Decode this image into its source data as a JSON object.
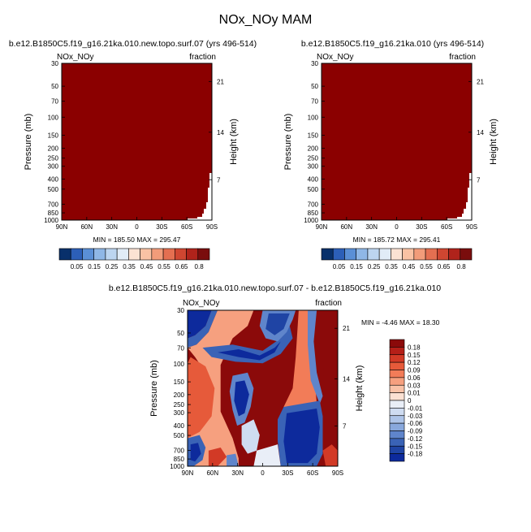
{
  "title": "NOx_NOy MAM",
  "colors": {
    "full_field": "#8b0000",
    "diff_red_deep": "#8b0a0a",
    "diff_blue_deep": "#0d2a9c"
  },
  "chart_data": [
    {
      "type": "heatmap",
      "title": "b.e12.B1850C5.f19_g16.21ka.010.new.topo.surf.07 (yrs 496-514)",
      "left_label": "NOx_NOy",
      "right_label": "fraction",
      "xlabel": "",
      "ylabel": "Pressure (mb)",
      "y2label": "Height (km)",
      "x_ticks": [
        "90N",
        "60N",
        "30N",
        "0",
        "30S",
        "60S",
        "90S"
      ],
      "y_ticks": [
        "30",
        "50",
        "70",
        "100",
        "150",
        "200",
        "250",
        "300",
        "400",
        "500",
        "700",
        "850",
        "1000"
      ],
      "y2_ticks": [
        "21",
        "14",
        "7"
      ],
      "ylim": [
        1000,
        30
      ],
      "min_max_text": "MIN = 185.50   MAX = 295.47"
    },
    {
      "type": "heatmap",
      "title": "b.e12.B1850C5.f19_g16.21ka.010 (yrs 496-514)",
      "left_label": "NOx_NOy",
      "right_label": "fraction",
      "xlabel": "",
      "ylabel": "Pressure (mb)",
      "y2label": "Height (km)",
      "x_ticks": [
        "90N",
        "60N",
        "30N",
        "0",
        "30S",
        "60S",
        "90S"
      ],
      "y_ticks": [
        "30",
        "50",
        "70",
        "100",
        "150",
        "200",
        "250",
        "300",
        "400",
        "500",
        "700",
        "850",
        "1000"
      ],
      "y2_ticks": [
        "21",
        "14",
        "7"
      ],
      "ylim": [
        1000,
        30
      ],
      "min_max_text": "MIN = 185.72   MAX = 295.41"
    },
    {
      "type": "heatmap",
      "title": "b.e12.B1850C5.f19_g16.21ka.010.new.topo.surf.07 - b.e12.B1850C5.f19_g16.21ka.010",
      "left_label": "NOx_NOy",
      "right_label": "fraction",
      "xlabel": "",
      "ylabel": "Pressure (mb)",
      "y2label": "Height (km)",
      "x_ticks": [
        "90N",
        "60N",
        "30N",
        "0",
        "30S",
        "60S",
        "90S"
      ],
      "y_ticks": [
        "30",
        "50",
        "70",
        "100",
        "150",
        "200",
        "250",
        "300",
        "400",
        "500",
        "700",
        "850",
        "1000"
      ],
      "y2_ticks": [
        "21",
        "14",
        "7"
      ],
      "ylim": [
        1000,
        30
      ],
      "min_max_text": "MIN =  -4.46   MAX =  18.30"
    }
  ],
  "colorbar_top": {
    "labels": [
      "0.05",
      "0.15",
      "0.25",
      "0.35",
      "0.45",
      "0.55",
      "0.65",
      "0.8"
    ],
    "colors": [
      "#08306b",
      "#2c5fb8",
      "#5a8fd6",
      "#8fb7e6",
      "#bcd5f0",
      "#e1ecf7",
      "#fbe2d3",
      "#f9c2a4",
      "#f29c7a",
      "#e46f51",
      "#cf4631",
      "#b0231b",
      "#7a0d0d"
    ]
  },
  "colorbar_diff": {
    "labels": [
      "0.18",
      "0.15",
      "0.12",
      "0.09",
      "0.06",
      "0.03",
      "0.01",
      "0",
      "-0.01",
      "-0.03",
      "-0.06",
      "-0.09",
      "-0.12",
      "-0.15",
      "-0.18"
    ],
    "colors": [
      "#8b0a0a",
      "#b51f18",
      "#d23a26",
      "#e65a3a",
      "#f27c58",
      "#f6a07f",
      "#f9c2a7",
      "#fbe1d3",
      "#e9eef7",
      "#cfdcf1",
      "#aec4e8",
      "#89a8dc",
      "#5f85cb",
      "#3a63b6",
      "#1f44a4",
      "#0d2a9c"
    ]
  }
}
